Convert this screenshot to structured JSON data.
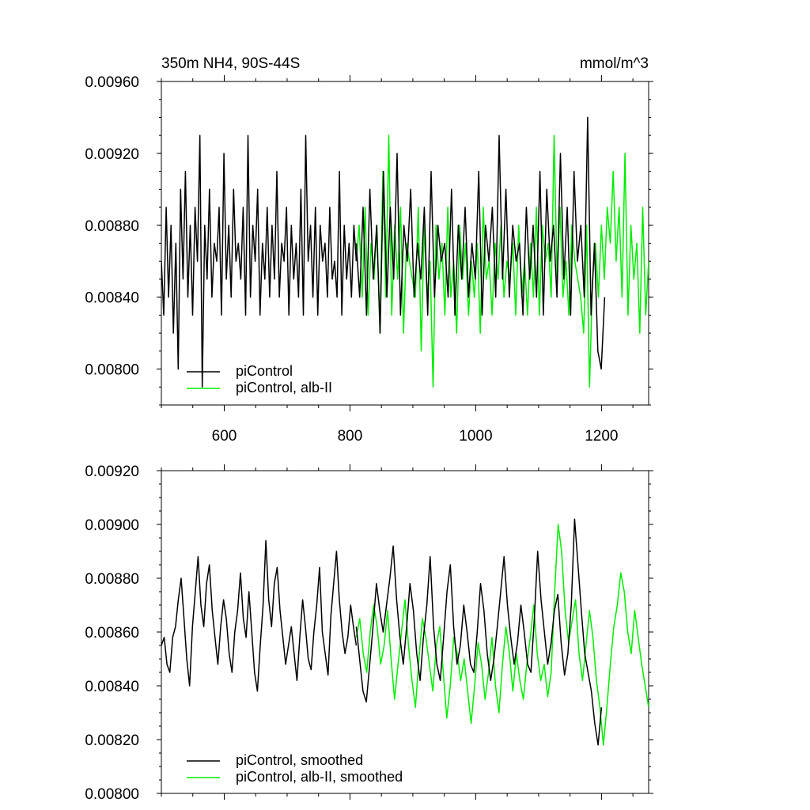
{
  "title_left": "350m NH4, 90S-44S",
  "title_right": "mmol/m^3",
  "colors": {
    "control": "#000000",
    "alb": "#00ee00"
  },
  "chart_data": [
    {
      "type": "line",
      "xlim": [
        500,
        1275
      ],
      "ylim": [
        0.0078,
        0.0096
      ],
      "xticks": [
        600,
        800,
        1000,
        1200
      ],
      "xtick_labels": [
        "600",
        "800",
        "1000",
        "1200"
      ],
      "yticks": [
        0.008,
        0.0084,
        0.0088,
        0.0092,
        0.0096
      ],
      "ytick_labels": [
        "0.00800",
        "0.00840",
        "0.00880",
        "0.00920",
        "0.00960"
      ],
      "legend_position": "bottom-left",
      "series": [
        {
          "name": "piControl",
          "color_key": "control",
          "x_start": 500,
          "x_end": 810,
          "values": [
            0.0086,
            0.0083,
            0.0089,
            0.0084,
            0.0088,
            0.0082,
            0.0087,
            0.008,
            0.009,
            0.0085,
            0.0091,
            0.0084,
            0.0088,
            0.0083,
            0.0089,
            0.0086,
            0.0093,
            0.0079,
            0.0088,
            0.0085,
            0.009,
            0.0084,
            0.0087,
            0.0086,
            0.0089,
            0.0083,
            0.0092,
            0.0085,
            0.0088,
            0.0084,
            0.009,
            0.0086,
            0.0087,
            0.0085,
            0.0089,
            0.0083,
            0.0093,
            0.0084,
            0.0088,
            0.0086,
            0.009,
            0.0083,
            0.0087,
            0.0085,
            0.0089,
            0.0084,
            0.0088,
            0.0085,
            0.0091,
            0.0084,
            0.0087,
            0.0086,
            0.0089,
            0.0083,
            0.0088,
            0.0085,
            0.0087,
            0.0084,
            0.009,
            0.0083,
            0.0093,
            0.0086,
            0.0088,
            0.0084,
            0.0089,
            0.0083,
            0.0088,
            0.0086,
            0.0087,
            0.0084,
            0.0089,
            0.0085,
            0.0086,
            0.0084,
            0.0091,
            0.0083,
            0.0088,
            0.0085,
            0.0087,
            0.0084,
            0.0088,
            0.0086
          ]
        },
        {
          "name": "piControl, alb-II",
          "color_key": "alb",
          "x_start": 810,
          "x_end": 1275,
          "values": [
            0.0086,
            0.0088,
            0.0084,
            0.0089,
            0.0083,
            0.0087,
            0.0085,
            0.0088,
            0.0082,
            0.0091,
            0.0084,
            0.0093,
            0.0083,
            0.0088,
            0.0085,
            0.0089,
            0.0082,
            0.0087,
            0.0086,
            0.0085,
            0.0084,
            0.0089,
            0.0081,
            0.0088,
            0.0084,
            0.0086,
            0.0079,
            0.0088,
            0.0085,
            0.0087,
            0.0083,
            0.0089,
            0.0084,
            0.0086,
            0.0082,
            0.0088,
            0.0085,
            0.0087,
            0.0083,
            0.0086,
            0.0084,
            0.0087,
            0.0082,
            0.0089,
            0.0085,
            0.0086,
            0.0083,
            0.0087,
            0.0085,
            0.0088,
            0.0084,
            0.0086,
            0.0085,
            0.0087,
            0.0083,
            0.0088,
            0.0084,
            0.0086,
            0.0083,
            0.0087,
            0.0084,
            0.0089,
            0.0083,
            0.0088,
            0.0086,
            0.0087,
            0.0084,
            0.0093,
            0.0085,
            0.0089,
            0.0084,
            0.0086,
            0.0083,
            0.0088,
            0.0086,
            0.0085,
            0.0084,
            0.0082,
            0.0088,
            0.0079,
            0.0085,
            0.0087,
            0.0084,
            0.0088,
            0.0085,
            0.0089,
            0.0087,
            0.0091,
            0.0086,
            0.0089,
            0.0084,
            0.0092,
            0.0083,
            0.0088,
            0.0085,
            0.0087,
            0.0082,
            0.0089,
            0.0083,
            0.0086
          ]
        },
        {
          "name": "",
          "color_key": "control",
          "x_start": 810,
          "x_end": 1205,
          "values": [
            0.0087,
            0.0084,
            0.0089,
            0.0083,
            0.009,
            0.0085,
            0.0088,
            0.0082,
            0.0091,
            0.0084,
            0.0089,
            0.0085,
            0.0092,
            0.0083,
            0.0088,
            0.0086,
            0.009,
            0.0084,
            0.0087,
            0.0085,
            0.0089,
            0.0083,
            0.0091,
            0.0084,
            0.0088,
            0.0086,
            0.0087,
            0.0084,
            0.009,
            0.0083,
            0.0088,
            0.0085,
            0.0089,
            0.0084,
            0.0087,
            0.0085,
            0.0091,
            0.0083,
            0.0088,
            0.0086,
            0.0089,
            0.0084,
            0.0093,
            0.0085,
            0.009,
            0.0084,
            0.0088,
            0.0086,
            0.0087,
            0.0083,
            0.0089,
            0.0085,
            0.0088,
            0.0084,
            0.0091,
            0.0083,
            0.009,
            0.0086,
            0.0088,
            0.0084,
            0.0092,
            0.0085,
            0.0089,
            0.0083,
            0.0091,
            0.0086,
            0.0088,
            0.0084,
            0.0094,
            0.0083,
            0.0087,
            0.0081,
            0.008,
            0.0084
          ]
        }
      ]
    },
    {
      "type": "line",
      "xlim": [
        500,
        1275
      ],
      "ylim": [
        0.008,
        0.0092
      ],
      "xticks": [
        600,
        800,
        1000,
        1200
      ],
      "xtick_labels": [
        "",
        "",
        "",
        ""
      ],
      "yticks": [
        0.008,
        0.0082,
        0.0084,
        0.0086,
        0.0088,
        0.009,
        0.0092
      ],
      "ytick_labels": [
        "0.00800",
        "0.00820",
        "0.00840",
        "0.00860",
        "0.00880",
        "0.00900",
        "0.00920"
      ],
      "legend_position": "bottom-left",
      "series": [
        {
          "name": "piControl, smoothed",
          "color_key": "control",
          "x_start": 500,
          "x_end": 810,
          "values": [
            0.00855,
            0.00858,
            0.00848,
            0.00845,
            0.00858,
            0.00862,
            0.00872,
            0.0088,
            0.00865,
            0.0085,
            0.0084,
            0.00862,
            0.00875,
            0.00888,
            0.0087,
            0.00862,
            0.00878,
            0.00885,
            0.00868,
            0.00858,
            0.00848,
            0.00862,
            0.00872,
            0.00865,
            0.00852,
            0.00845,
            0.0086,
            0.00868,
            0.00882,
            0.00865,
            0.00858,
            0.00875,
            0.0086,
            0.00845,
            0.00838,
            0.00855,
            0.0087,
            0.00894,
            0.00872,
            0.00862,
            0.00878,
            0.00884,
            0.00868,
            0.00858,
            0.00848,
            0.00855,
            0.00862,
            0.00852,
            0.00842,
            0.00858,
            0.00872,
            0.00862,
            0.0085,
            0.00846,
            0.0086,
            0.0087,
            0.00884,
            0.0086,
            0.00852,
            0.00844,
            0.00866,
            0.00878,
            0.0089,
            0.00872,
            0.0086,
            0.00852,
            0.00858,
            0.0087,
            0.00862,
            0.00855
          ]
        },
        {
          "name": "piControl, alb-II, smoothed",
          "color_key": "alb",
          "x_start": 810,
          "x_end": 1275,
          "values": [
            0.00858,
            0.00865,
            0.00852,
            0.00845,
            0.0086,
            0.0087,
            0.00862,
            0.00848,
            0.00855,
            0.00868,
            0.0085,
            0.00835,
            0.00848,
            0.0086,
            0.00872,
            0.00855,
            0.00842,
            0.00832,
            0.0085,
            0.00865,
            0.00858,
            0.00848,
            0.00838,
            0.00855,
            0.00862,
            0.00845,
            0.00828,
            0.0084,
            0.00858,
            0.00852,
            0.00842,
            0.0085,
            0.00838,
            0.00826,
            0.0084,
            0.00856,
            0.00848,
            0.00835,
            0.00845,
            0.00858,
            0.0084,
            0.0083,
            0.00848,
            0.00862,
            0.00852,
            0.00838,
            0.00852,
            0.00842,
            0.00835,
            0.00848,
            0.00858,
            0.0087,
            0.00852,
            0.00842,
            0.00848,
            0.00836,
            0.00845,
            0.00875,
            0.009,
            0.0089,
            0.00868,
            0.00856,
            0.00864,
            0.00872,
            0.00852,
            0.00842,
            0.00855,
            0.00868,
            0.00858,
            0.00842,
            0.00832,
            0.00818,
            0.00832,
            0.00848,
            0.00862,
            0.0087,
            0.00882,
            0.00875,
            0.0086,
            0.00852,
            0.00868,
            0.00858,
            0.00848,
            0.0084,
            0.00832
          ]
        },
        {
          "name": "",
          "color_key": "control",
          "x_start": 810,
          "x_end": 1200,
          "values": [
            0.00862,
            0.0085,
            0.00838,
            0.00834,
            0.00848,
            0.00862,
            0.00878,
            0.00868,
            0.0086,
            0.0087,
            0.0088,
            0.00892,
            0.00872,
            0.00858,
            0.00848,
            0.00862,
            0.00878,
            0.00868,
            0.00852,
            0.00842,
            0.00858,
            0.0087,
            0.00888,
            0.00862,
            0.00848,
            0.00842,
            0.00858,
            0.00875,
            0.00885,
            0.00862,
            0.00848,
            0.00855,
            0.0087,
            0.0086,
            0.00848,
            0.00845,
            0.0086,
            0.00878,
            0.00868,
            0.00852,
            0.00842,
            0.0085,
            0.00862,
            0.00875,
            0.00888,
            0.0087,
            0.00858,
            0.00848,
            0.00856,
            0.0087,
            0.0086,
            0.00848,
            0.00845,
            0.00865,
            0.0089,
            0.00872,
            0.0086,
            0.00848,
            0.00856,
            0.00868,
            0.00874,
            0.00856,
            0.00844,
            0.00852,
            0.0087,
            0.00902,
            0.00885,
            0.00868,
            0.00852,
            0.00845,
            0.00838,
            0.00826,
            0.00818,
            0.00832
          ]
        }
      ]
    }
  ]
}
